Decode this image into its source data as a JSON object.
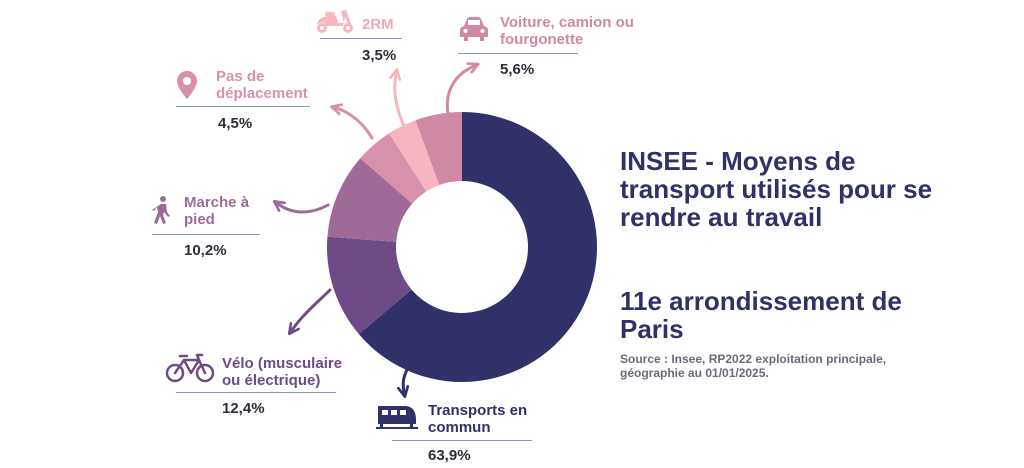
{
  "chart_data": {
    "type": "donut",
    "title": "INSEE - Moyens de transport utilisés pour se rendre au travail",
    "subtitle": "11e arrondissement de Paris",
    "source": "Source : Insee, RP2022 exploitation principale, géographie au 01/01/2025.",
    "slices": [
      {
        "label": "Transports en commun",
        "value": 63.9,
        "value_label": "63,9%",
        "color": "#2f3168",
        "icon": "train-icon"
      },
      {
        "label": "Vélo (musculaire ou électrique)",
        "value": 12.4,
        "value_label": "12,4%",
        "color": "#6e4a86",
        "icon": "bicycle-icon"
      },
      {
        "label": "Marche à pied",
        "value": 10.2,
        "value_label": "10,2%",
        "color": "#a06a98",
        "icon": "walking-person-icon"
      },
      {
        "label": "Pas de déplacement",
        "value": 4.5,
        "value_label": "4,5%",
        "color": "#d891ac",
        "icon": "location-pin-icon"
      },
      {
        "label": "2RM",
        "value": 3.5,
        "value_label": "3,5%",
        "color": "#f7b5bf",
        "icon": "scooter-icon"
      },
      {
        "label": "Voiture, camion ou fourgonette",
        "value": 5.6,
        "value_label": "5,6%",
        "color": "#d089a4",
        "icon": "car-icon"
      }
    ]
  }
}
